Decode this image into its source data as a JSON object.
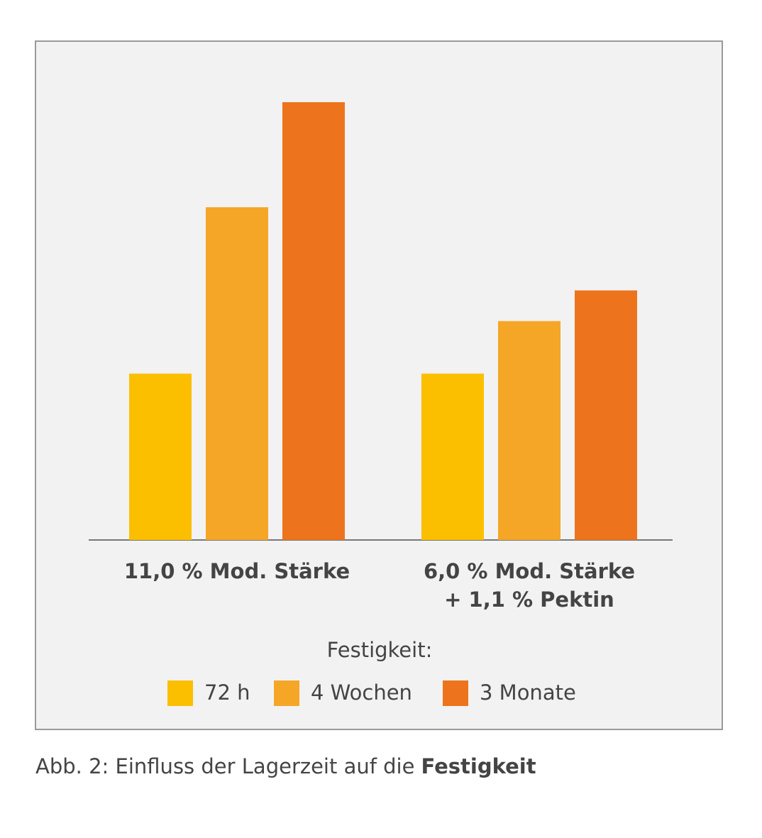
{
  "chart_data": {
    "type": "bar",
    "categories": [
      [
        "11,0 % Mod. Stärke"
      ],
      [
        "6,0 % Mod. Stärke",
        "+ 1,1 % Pektin"
      ]
    ],
    "series": [
      {
        "name": "72 h",
        "color": "#fbbf00",
        "values": [
          38,
          38
        ]
      },
      {
        "name": "4 Wochen",
        "color": "#f5a627",
        "values": [
          76,
          50
        ]
      },
      {
        "name": "3 Monate",
        "color": "#ed741c",
        "values": [
          100,
          57
        ]
      }
    ],
    "ylim": [
      0,
      100
    ],
    "legend_title": "Festigkeit:"
  },
  "caption": {
    "text": "Abb. 2: Einfluss der Lagerzeit auf die",
    "bold": "Festigkeit"
  }
}
